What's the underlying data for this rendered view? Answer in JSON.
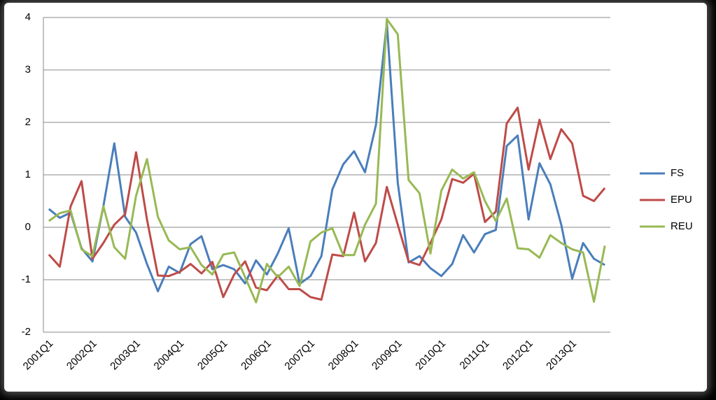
{
  "chart_data": {
    "type": "line",
    "categories": [
      "2001Q1",
      null,
      null,
      null,
      "2002Q1",
      null,
      null,
      null,
      "2003Q1",
      null,
      null,
      null,
      "2004Q1",
      null,
      null,
      null,
      "2005Q1",
      null,
      null,
      null,
      "2006Q1",
      null,
      null,
      null,
      "2007Q1",
      null,
      null,
      null,
      "2008Q1",
      null,
      null,
      null,
      "2009Q1",
      null,
      null,
      null,
      "2010Q1",
      null,
      null,
      null,
      "2011Q1",
      null,
      null,
      null,
      "2012Q1",
      null,
      null,
      null,
      "2013Q1",
      null,
      null,
      null
    ],
    "series": [
      {
        "name": "FS",
        "color": "#4a7ebb",
        "values": [
          0.35,
          0.18,
          0.28,
          -0.4,
          -0.65,
          0.4,
          1.6,
          0.2,
          -0.1,
          -0.7,
          -1.22,
          -0.75,
          -0.87,
          -0.32,
          -0.17,
          -0.8,
          -0.72,
          -0.8,
          -1.07,
          -0.63,
          -0.9,
          -0.5,
          -0.02,
          -1.08,
          -0.93,
          -0.55,
          0.72,
          1.2,
          1.45,
          1.05,
          1.95,
          3.9,
          0.85,
          -0.67,
          -0.55,
          -0.78,
          -0.93,
          -0.7,
          -0.15,
          -0.48,
          -0.13,
          -0.05,
          1.55,
          1.75,
          0.15,
          1.22,
          0.82,
          0.05,
          -0.98,
          -0.3,
          -0.6,
          -0.72
        ]
      },
      {
        "name": "EPU",
        "color": "#be4b48",
        "values": [
          -0.52,
          -0.75,
          0.4,
          0.88,
          -0.6,
          -0.3,
          0.05,
          0.25,
          1.43,
          0.15,
          -0.92,
          -0.93,
          -0.85,
          -0.7,
          -0.88,
          -0.66,
          -1.33,
          -0.9,
          -0.65,
          -1.15,
          -1.2,
          -0.92,
          -1.18,
          -1.18,
          -1.33,
          -1.38,
          -0.52,
          -0.55,
          0.28,
          -0.65,
          -0.3,
          0.77,
          0.05,
          -0.65,
          -0.72,
          -0.3,
          0.15,
          0.92,
          0.85,
          1.02,
          0.1,
          0.3,
          1.98,
          2.28,
          1.1,
          2.05,
          1.3,
          1.87,
          1.6,
          0.6,
          0.5,
          0.75
        ]
      },
      {
        "name": "REU",
        "color": "#98b954",
        "values": [
          0.12,
          0.27,
          0.32,
          -0.42,
          -0.55,
          0.4,
          -0.38,
          -0.6,
          0.6,
          1.3,
          0.2,
          -0.25,
          -0.42,
          -0.38,
          -0.72,
          -0.9,
          -0.52,
          -0.48,
          -0.95,
          -1.43,
          -0.7,
          -0.95,
          -0.75,
          -1.12,
          -0.27,
          -0.1,
          -0.02,
          -0.53,
          -0.53,
          0.05,
          0.45,
          3.97,
          3.68,
          0.9,
          0.65,
          -0.5,
          0.7,
          1.1,
          0.93,
          1.05,
          0.5,
          0.12,
          0.55,
          -0.4,
          -0.42,
          -0.58,
          -0.15,
          -0.3,
          -0.42,
          -0.48,
          -1.42,
          -0.35
        ]
      }
    ],
    "ylim": [
      -2,
      4
    ],
    "yticks": [
      -2,
      -1,
      0,
      1,
      2,
      3,
      4
    ],
    "grid": true,
    "legend": "right"
  }
}
